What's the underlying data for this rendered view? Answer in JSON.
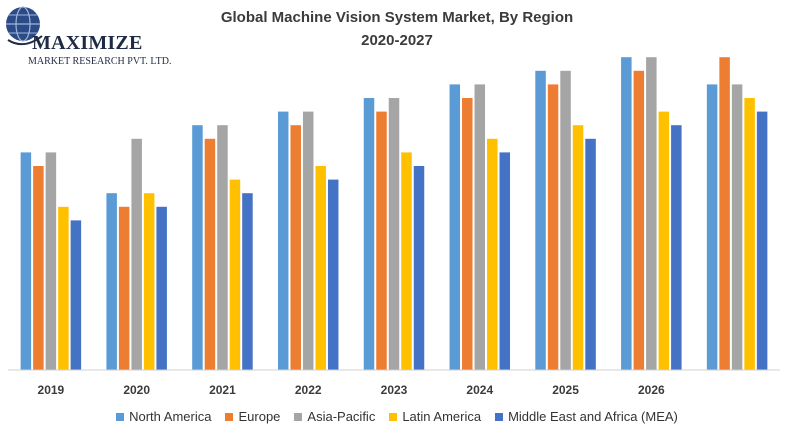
{
  "logo": {
    "name": "MAXIMIZE",
    "subtitle": "MARKET RESEARCH PVT. LTD."
  },
  "title": {
    "line1": "Global Machine Vision System Market, By Region",
    "line2": "2020-2027"
  },
  "chart_data": {
    "type": "bar",
    "title": "Global Machine Vision System Market, By Region 2020-2027",
    "xlabel": "",
    "ylabel": "",
    "categories": [
      "2019",
      "2020",
      "2021",
      "2022",
      "2023",
      "2024",
      "2025",
      "2026",
      ""
    ],
    "ylim": [
      0,
      25
    ],
    "grid": false,
    "legend_position": "bottom",
    "series": [
      {
        "name": "North America",
        "color": "#5b9bd5",
        "values": [
          16,
          13,
          18,
          19,
          20,
          21,
          22,
          23,
          21
        ]
      },
      {
        "name": "Europe",
        "color": "#ed7d31",
        "values": [
          15,
          12,
          17,
          18,
          19,
          20,
          21,
          22,
          23
        ]
      },
      {
        "name": "Asia-Pacific",
        "color": "#a5a5a5",
        "values": [
          16,
          17,
          18,
          19,
          20,
          21,
          22,
          23,
          21
        ]
      },
      {
        "name": "Latin America",
        "color": "#ffc000",
        "values": [
          12,
          13,
          14,
          15,
          16,
          17,
          18,
          19,
          20
        ]
      },
      {
        "name": "Middle East and Africa (MEA)",
        "color": "#4472c4",
        "values": [
          11,
          12,
          13,
          14,
          15,
          16,
          17,
          18,
          19
        ]
      }
    ]
  }
}
